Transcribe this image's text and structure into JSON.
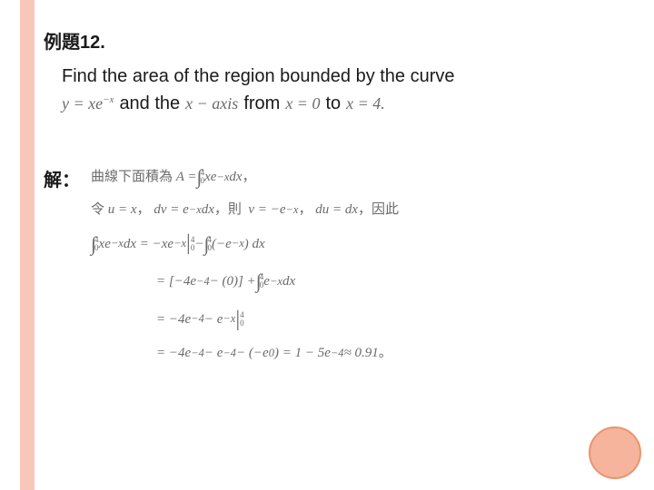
{
  "rail_color": "#f9c7b8",
  "circle_fill": "#f5b49b",
  "circle_border": "#e8956f",
  "example_label": "例題12.",
  "problem": {
    "line1": "Find the area of the region bounded by the curve",
    "eq_curve": "y = xe",
    "eq_curve_exp": "−x",
    "and_the": "and the",
    "xaxis": "x − axis",
    "from": "from",
    "x0": "x = 0",
    "to": "to",
    "x4": "x = 4.",
    "period": ""
  },
  "solution_label": "解：",
  "sol": {
    "r1_pre": "曲線下面積為",
    "r1_A": "A =",
    "r1_int_up": "4",
    "r1_int_lo": "0",
    "r1_intexpr": " xe",
    "r1_exp": "−x",
    "r1_dx": "dx",
    "r1_comma": "，",
    "r2_pre": "令",
    "r2_u": "u = x",
    "r2_c1": "，",
    "r2_dv": "dv = e",
    "r2_dv_exp": "−x",
    "r2_dv2": "dx",
    "r2_c2": "，則",
    "r2_v": "v = −e",
    "r2_v_exp": "−x",
    "r2_c3": "，",
    "r2_du": "du = dx",
    "r2_c4": "，因此",
    "r3_lhs_up": "4",
    "r3_lhs_lo": "0",
    "r3_lhs": " xe",
    "r3_lhs_exp": "−x",
    "r3_lhs_dx": "dx = −xe",
    "r3_lhs_exp2": "−x",
    "r3_bar_up": "4",
    "r3_bar_lo": "0",
    "r3_minus": " − ",
    "r3_rint_up": "4",
    "r3_rint_lo": "0",
    "r3_rexpr": "(−e",
    "r3_rexp": "−x",
    "r3_rexpr2": ") dx",
    "r4": "= [−4e",
    "r4_exp1": "−4",
    "r4_mid": " − (0)] + ",
    "r4_int_up": "4",
    "r4_int_lo": "0",
    "r4_expr": " e",
    "r4_exp2": "−x",
    "r4_dx": "dx",
    "r5": "= −4e",
    "r5_exp1": "−4",
    "r5_mid": " − e",
    "r5_exp2": "−x",
    "r5_bar_up": "4",
    "r5_bar_lo": "0",
    "r6": "= −4e",
    "r6_e1": "−4",
    "r6_a": " − e",
    "r6_e2": "−4",
    "r6_b": " − (−e",
    "r6_e3": "0",
    "r6_c": ") = 1 − 5e",
    "r6_e4": "−4",
    "r6_d": " ≈ 0.91",
    "r6_period": "。"
  }
}
